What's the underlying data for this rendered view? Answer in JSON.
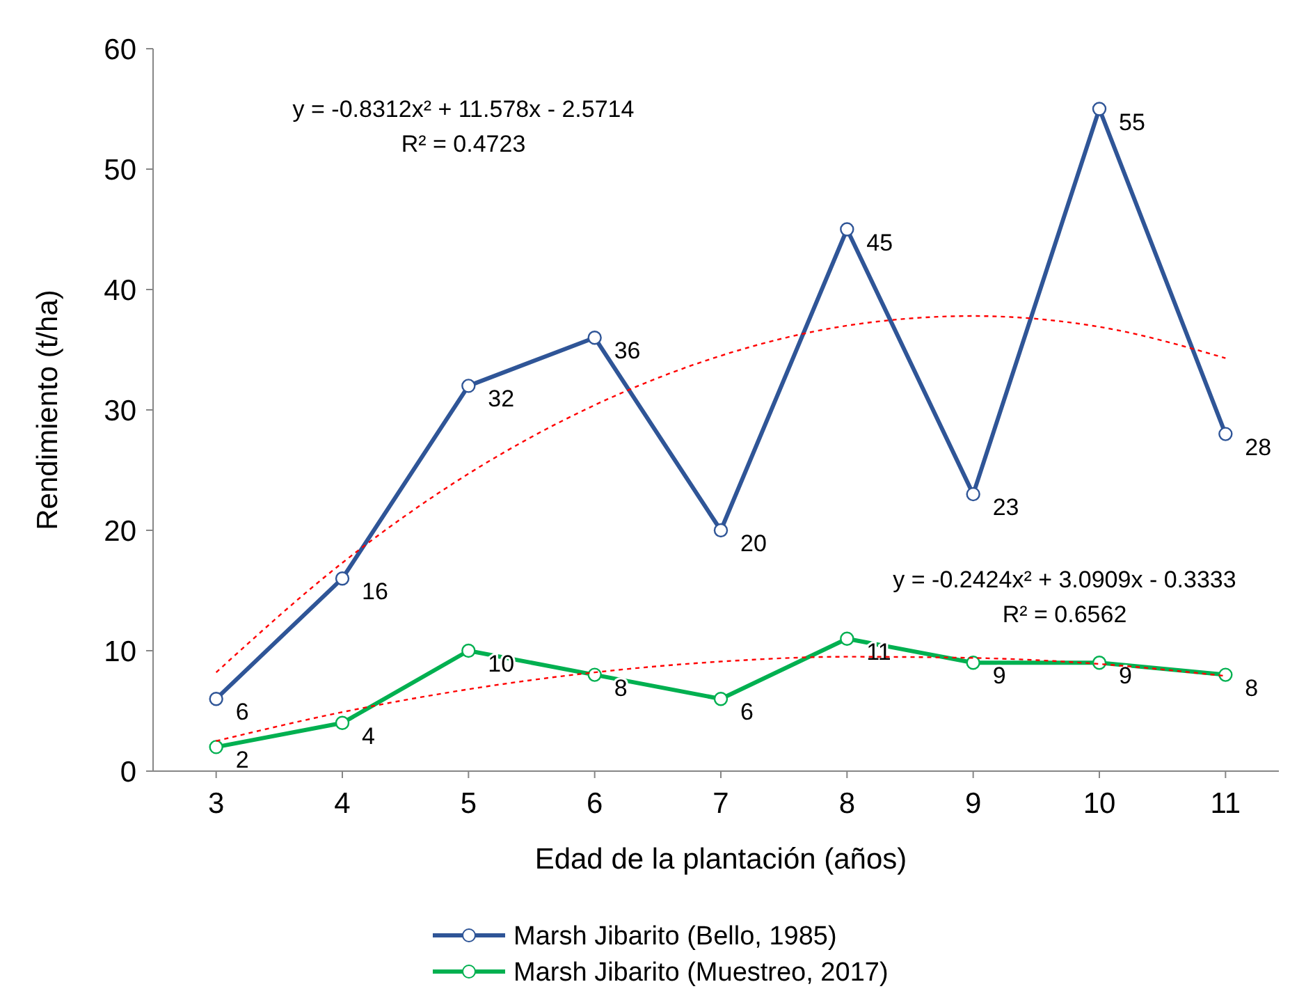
{
  "chart_data": {
    "type": "line",
    "xlabel": "Edad de la plantación (años)",
    "ylabel": "Rendimiento (t/ha)",
    "x": [
      3,
      4,
      5,
      6,
      7,
      8,
      9,
      10,
      11
    ],
    "xlim": [
      2.5,
      11.5
    ],
    "xticks": [
      3,
      4,
      5,
      6,
      7,
      8,
      9,
      10,
      11
    ],
    "ylim": [
      0,
      60
    ],
    "yticks": [
      0,
      10,
      20,
      30,
      40,
      50,
      60
    ],
    "grid": false,
    "legend": "bottom",
    "marker": "circle",
    "line_style": "solid",
    "series": [
      {
        "name": "Marsh Jibarito (Bello, 1985)",
        "color": "#2f5597",
        "values": [
          6,
          16,
          32,
          36,
          20,
          45,
          23,
          55,
          28
        ],
        "value_labels": [
          "6",
          "16",
          "32",
          "36",
          "20",
          "45",
          "23",
          "55",
          "28"
        ]
      },
      {
        "name": "Marsh Jibarito (Muestreo, 2017)",
        "color": "#00b050",
        "values": [
          2,
          4,
          10,
          8,
          6,
          11,
          9,
          9,
          8
        ],
        "value_labels": [
          "2",
          "4",
          "10",
          "8",
          "6",
          "11",
          "9",
          "9",
          "8"
        ]
      },
      {
        "type": "line",
        "color": "#ff0000",
        "line_style": "dashed",
        "marker": "none",
        "x": [
          3,
          4,
          5,
          6,
          7,
          8,
          9,
          10,
          11
        ],
        "values": [
          8.2,
          17.3,
          24.7,
          30.4,
          34.5,
          37.0,
          37.8,
          36.9,
          34.3
        ]
      },
      {
        "type": "line",
        "color": "#ff0000",
        "line_style": "dashed",
        "marker": "none",
        "x": [
          3,
          4,
          5,
          6,
          7,
          8,
          9,
          10,
          11
        ],
        "values": [
          2.5,
          4.9,
          6.8,
          8.2,
          9.1,
          9.5,
          9.4,
          8.9,
          7.9
        ]
      }
    ],
    "annotations": [
      "y = -0.8312x² + 11.578x - 2.5714",
      "R² = 0.4723",
      "y = -0.2424x² + 3.0909x - 0.3333",
      "R² = 0.6562"
    ]
  }
}
